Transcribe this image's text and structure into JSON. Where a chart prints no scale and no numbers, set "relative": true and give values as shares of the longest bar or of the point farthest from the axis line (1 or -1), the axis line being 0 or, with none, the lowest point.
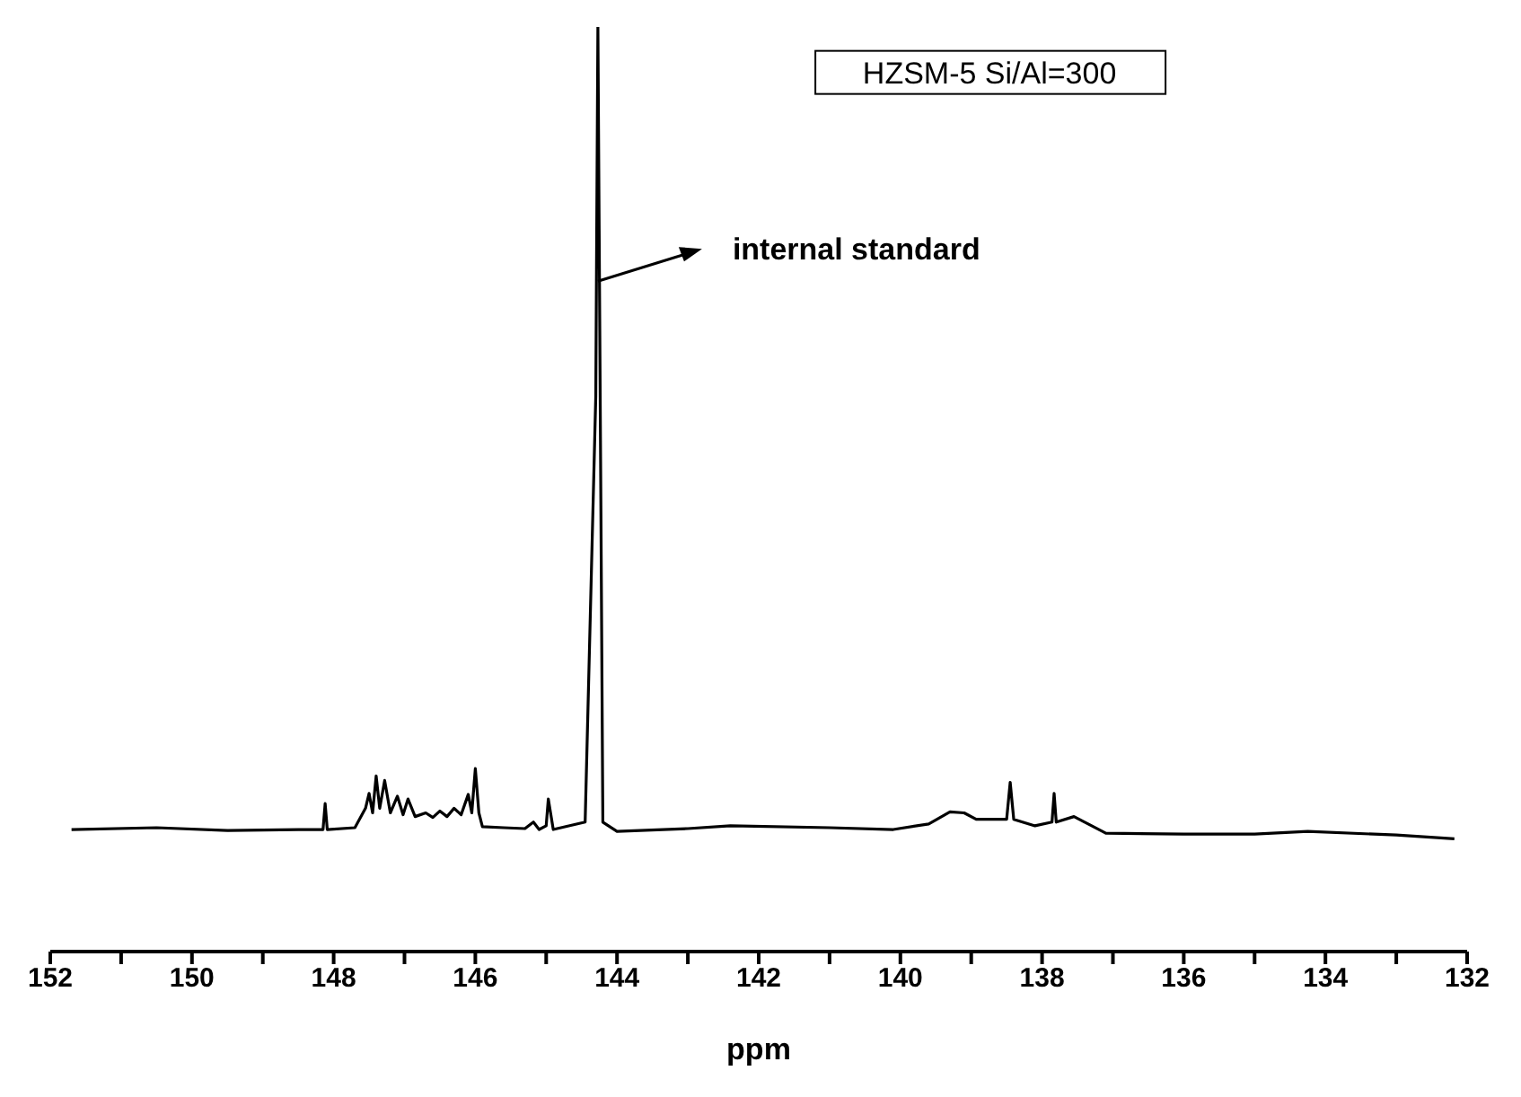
{
  "chart_data": {
    "type": "line",
    "relative": true,
    "xlabel": "ppm",
    "xlim": [
      152,
      132
    ],
    "xticks": [
      152,
      {
        "value": 151,
        "label": null
      },
      150,
      {
        "value": 149,
        "label": null
      },
      148,
      {
        "value": 147,
        "label": null
      },
      146,
      {
        "value": 145,
        "label": null
      },
      144,
      {
        "value": 143,
        "label": null
      },
      142,
      {
        "value": 141,
        "label": null
      },
      140,
      {
        "value": 139,
        "label": null
      },
      138,
      {
        "value": 137,
        "label": null
      },
      136,
      {
        "value": 135,
        "label": null
      },
      134,
      {
        "value": 133,
        "label": null
      },
      132
    ],
    "x": [
      151.7,
      150.5,
      149.5,
      148.5,
      148.15,
      148.12,
      148.09,
      147.7,
      147.55,
      147.5,
      147.45,
      147.4,
      147.35,
      147.28,
      147.2,
      147.1,
      147.02,
      146.95,
      146.85,
      146.7,
      146.6,
      146.5,
      146.4,
      146.3,
      146.2,
      146.1,
      146.05,
      146.0,
      145.95,
      145.9,
      145.6,
      145.3,
      145.18,
      145.1,
      145.0,
      144.97,
      144.9,
      144.45,
      144.3,
      144.27,
      144.2,
      144.0,
      143.0,
      142.4,
      141.0,
      140.1,
      139.6,
      139.3,
      139.1,
      138.93,
      138.5,
      138.45,
      138.4,
      138.1,
      137.86,
      137.83,
      137.8,
      137.55,
      137.3,
      137.1,
      136.0,
      135.0,
      134.25,
      133.0,
      132.18
    ],
    "series": [
      {
        "color": "#000000",
        "values": [
          0.132,
          0.134,
          0.131,
          0.132,
          0.132,
          0.16,
          0.132,
          0.134,
          0.155,
          0.171,
          0.15,
          0.19,
          0.155,
          0.185,
          0.15,
          0.168,
          0.148,
          0.165,
          0.146,
          0.15,
          0.145,
          0.152,
          0.146,
          0.155,
          0.148,
          0.17,
          0.15,
          0.198,
          0.15,
          0.135,
          0.134,
          0.133,
          0.14,
          0.132,
          0.136,
          0.165,
          0.132,
          0.14,
          0.6,
          1,
          0.14,
          0.13,
          0.133,
          0.136,
          0.134,
          0.132,
          0.138,
          0.151,
          0.15,
          0.143,
          0.143,
          0.183,
          0.143,
          0.136,
          0.14,
          0.171,
          0.14,
          0.146,
          0.136,
          0.128,
          0.127,
          0.127,
          0.13,
          0.126,
          0.122
        ]
      }
    ],
    "marker": "none",
    "line_style": "solid",
    "annotations": [
      "HZSM-5 Si/Al=300",
      "internal standard"
    ]
  }
}
